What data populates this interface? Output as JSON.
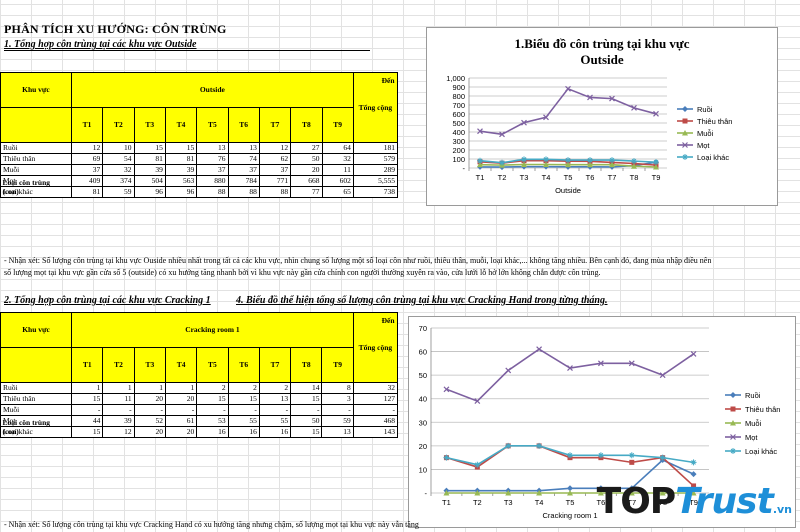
{
  "title": "PHÂN TÍCH XU HƯỚNG: CÔN TRÙNG",
  "section1": {
    "heading": "1. Tổng hợp côn trùng tại các khu vực Outside",
    "table": {
      "khu_vuc": "Khu vực",
      "area": "Outside",
      "den": "Đến",
      "loai": "Loại côn trùng (con)",
      "tong": "Tổng cộng",
      "cols": [
        "T1",
        "T2",
        "T3",
        "T4",
        "T5",
        "T6",
        "T7",
        "T8",
        "T9"
      ],
      "rows": [
        {
          "name": "Ruồi",
          "values": [
            "12",
            "10",
            "15",
            "15",
            "13",
            "13",
            "12",
            "27",
            "64"
          ],
          "total": "181"
        },
        {
          "name": "Thiêu thân",
          "values": [
            "69",
            "54",
            "81",
            "81",
            "76",
            "74",
            "62",
            "50",
            "32"
          ],
          "total": "579"
        },
        {
          "name": "Muỗi",
          "values": [
            "37",
            "32",
            "39",
            "39",
            "37",
            "37",
            "37",
            "20",
            "11"
          ],
          "total": "289"
        },
        {
          "name": "Mọt",
          "values": [
            "409",
            "374",
            "504",
            "563",
            "880",
            "784",
            "771",
            "668",
            "602"
          ],
          "total": "5,555"
        },
        {
          "name": "Loại khác",
          "values": [
            "81",
            "59",
            "96",
            "96",
            "88",
            "88",
            "88",
            "77",
            "65"
          ],
          "total": "738"
        }
      ]
    },
    "note_line1": "- Nhận xét: Số lượng côn trùng tại khu vực Ouside nhiều nhất trong tất cả các khu vực, nhìn chung số lượng một số loại côn như ruồi, thiêu thân, muỗi, loại khác,... không tăng nhiều. Bên cạnh đó, đang mùa nhập điều nên",
    "note_line2": "số lượng mọt tại khu vực gần cửa số 5 (outside) có xu hướng tăng nhanh bởi vì khu vực này gần cửa chính con người thường xuyên ra vào, cửa lưới lỗ hở lớn không chắn được côn trùng."
  },
  "section2": {
    "heading": "2. Tổng hợp côn trùng tại các khu vực Cracking 1",
    "heading4": "4. Biểu đồ thể hiện tổng số lượng côn trùng tại khu vực Cracking Hand trong từng tháng.",
    "table": {
      "khu_vuc": "Khu vực",
      "area": "Cracking room 1",
      "den": "Đến",
      "loai": "Loại côn trùng (con)",
      "tong": "Tổng cộng",
      "cols": [
        "T1",
        "T2",
        "T3",
        "T4",
        "T5",
        "T6",
        "T7",
        "T8",
        "T9"
      ],
      "rows": [
        {
          "name": "Ruồi",
          "values": [
            "1",
            "1",
            "1",
            "1",
            "2",
            "2",
            "2",
            "14",
            "8"
          ],
          "total": "32"
        },
        {
          "name": "Thiêu thân",
          "values": [
            "15",
            "11",
            "20",
            "20",
            "15",
            "15",
            "13",
            "15",
            "3"
          ],
          "total": "127"
        },
        {
          "name": "Muỗi",
          "values": [
            "-",
            "-",
            "-",
            "-",
            "-",
            "-",
            "-",
            "-",
            "-"
          ],
          "total": "-"
        },
        {
          "name": "Mọt",
          "values": [
            "44",
            "39",
            "52",
            "61",
            "53",
            "55",
            "55",
            "50",
            "59"
          ],
          "total": "468"
        },
        {
          "name": "Loại khác",
          "values": [
            "15",
            "12",
            "20",
            "20",
            "16",
            "16",
            "16",
            "15",
            "13"
          ],
          "total": "143"
        }
      ]
    },
    "note_line1": "- Nhận xét: Số lượng côn trùng tại khu vực Cracking Hand có xu hướng tăng nhưng chậm, số lượng mọt tại khu vực này vẫn tăng"
  },
  "logo": {
    "top": "TOP",
    "trust": "Trust",
    ".vn": ".vn",
    "color_dark": "#1a1a1a",
    "color_blue": "#1e8fd8"
  },
  "chart_data": [
    {
      "type": "line",
      "title": "1.Biểu đồ côn trùng tại khu vực Outside",
      "xlabel": "Outside",
      "ylabel": "",
      "categories": [
        "T1",
        "T2",
        "T3",
        "T4",
        "T5",
        "T6",
        "T7",
        "T8",
        "T9"
      ],
      "ylim": [
        0,
        1000
      ],
      "yticks": [
        "-",
        "100",
        "200",
        "300",
        "400",
        "500",
        "600",
        "700",
        "800",
        "900",
        "1,000"
      ],
      "legend": "right",
      "grid": true,
      "series": [
        {
          "name": "Ruồi",
          "color": "#4a7ebb",
          "marker": "diamond",
          "values": [
            12,
            10,
            15,
            15,
            13,
            13,
            12,
            27,
            64
          ]
        },
        {
          "name": "Thiêu thân",
          "color": "#be4b48",
          "marker": "square",
          "values": [
            69,
            54,
            81,
            81,
            76,
            74,
            62,
            50,
            32
          ]
        },
        {
          "name": "Muỗi",
          "color": "#98b954",
          "marker": "triangle",
          "values": [
            37,
            32,
            39,
            39,
            37,
            37,
            37,
            20,
            11
          ]
        },
        {
          "name": "Mọt",
          "color": "#7d60a0",
          "marker": "x",
          "values": [
            409,
            374,
            504,
            563,
            880,
            784,
            771,
            668,
            602
          ]
        },
        {
          "name": "Loại khác",
          "color": "#46aac5",
          "marker": "star",
          "values": [
            81,
            59,
            96,
            96,
            88,
            88,
            88,
            77,
            65
          ]
        }
      ]
    },
    {
      "type": "line",
      "title": "",
      "xlabel": "Cracking room 1",
      "ylabel": "",
      "categories": [
        "T1",
        "T2",
        "T3",
        "T4",
        "T5",
        "T6",
        "T7",
        "T8",
        "T9"
      ],
      "ylim": [
        0,
        70
      ],
      "yticks": [
        "-",
        "10",
        "20",
        "30",
        "40",
        "50",
        "60",
        "70"
      ],
      "legend": "right",
      "grid": true,
      "series": [
        {
          "name": "Ruồi",
          "color": "#4a7ebb",
          "marker": "diamond",
          "values": [
            1,
            1,
            1,
            1,
            2,
            2,
            2,
            14,
            8
          ]
        },
        {
          "name": "Thiêu thân",
          "color": "#be4b48",
          "marker": "square",
          "values": [
            15,
            11,
            20,
            20,
            15,
            15,
            13,
            15,
            3
          ]
        },
        {
          "name": "Muỗi",
          "color": "#98b954",
          "marker": "triangle",
          "values": [
            0,
            0,
            0,
            0,
            0,
            0,
            0,
            0,
            0
          ]
        },
        {
          "name": "Mọt",
          "color": "#7d60a0",
          "marker": "x",
          "values": [
            44,
            39,
            52,
            61,
            53,
            55,
            55,
            50,
            59
          ]
        },
        {
          "name": "Loại khác",
          "color": "#46aac5",
          "marker": "star",
          "values": [
            15,
            12,
            20,
            20,
            16,
            16,
            16,
            15,
            13
          ]
        }
      ]
    }
  ]
}
